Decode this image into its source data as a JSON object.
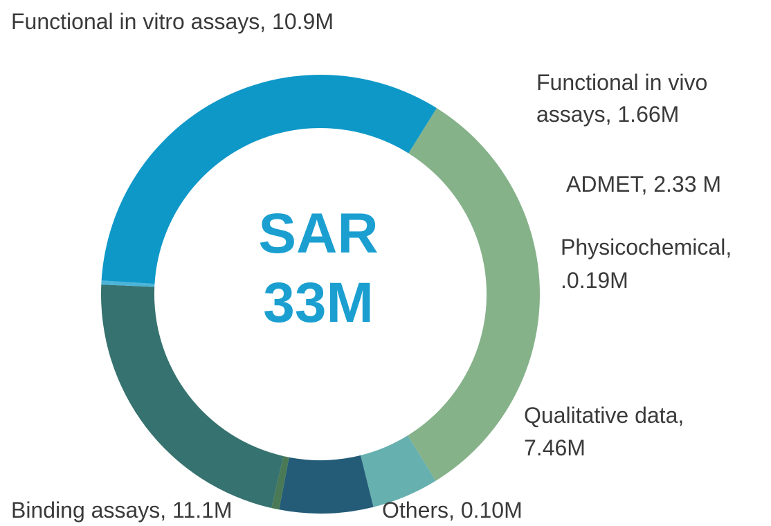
{
  "chart_data": {
    "type": "pie",
    "donut": true,
    "center_title": "SAR",
    "center_value": "33M",
    "unit": "M",
    "slices": [
      {
        "label": "Functional in vitro assays, 10.9M",
        "value": 10.9,
        "color": "#86b28a"
      },
      {
        "label": "Functional in vivo assays, 1.66M",
        "value": 1.66,
        "color": "#66b0b0"
      },
      {
        "label": "ADMET, 2.33 M",
        "value": 2.33,
        "color": "#245c78"
      },
      {
        "label": "Physicochemical, .0.19M",
        "value": 0.19,
        "color": "#4a7a55"
      },
      {
        "label": "Qualitative data, 7.46M",
        "value": 7.46,
        "color": "#36726f"
      },
      {
        "label": "Others, 0.10M",
        "value": 0.1,
        "color": "#4cb4d8"
      },
      {
        "label": "Binding assays, 11.1M",
        "value": 11.1,
        "color": "#0e98c8"
      }
    ]
  },
  "labels": {
    "vitro": "Functional in vitro assays, 10.9M",
    "vivo_1": "Functional in vivo",
    "vivo_2": "assays, 1.66M",
    "admet": "ADMET, 2.33 M",
    "physico_1": "Physicochemical,",
    "physico_2": ".0.19M",
    "qual_1": "Qualitative data,",
    "qual_2": "7.46M",
    "others": "Others, 0.10M",
    "binding": "Binding assays, 11.1M"
  }
}
